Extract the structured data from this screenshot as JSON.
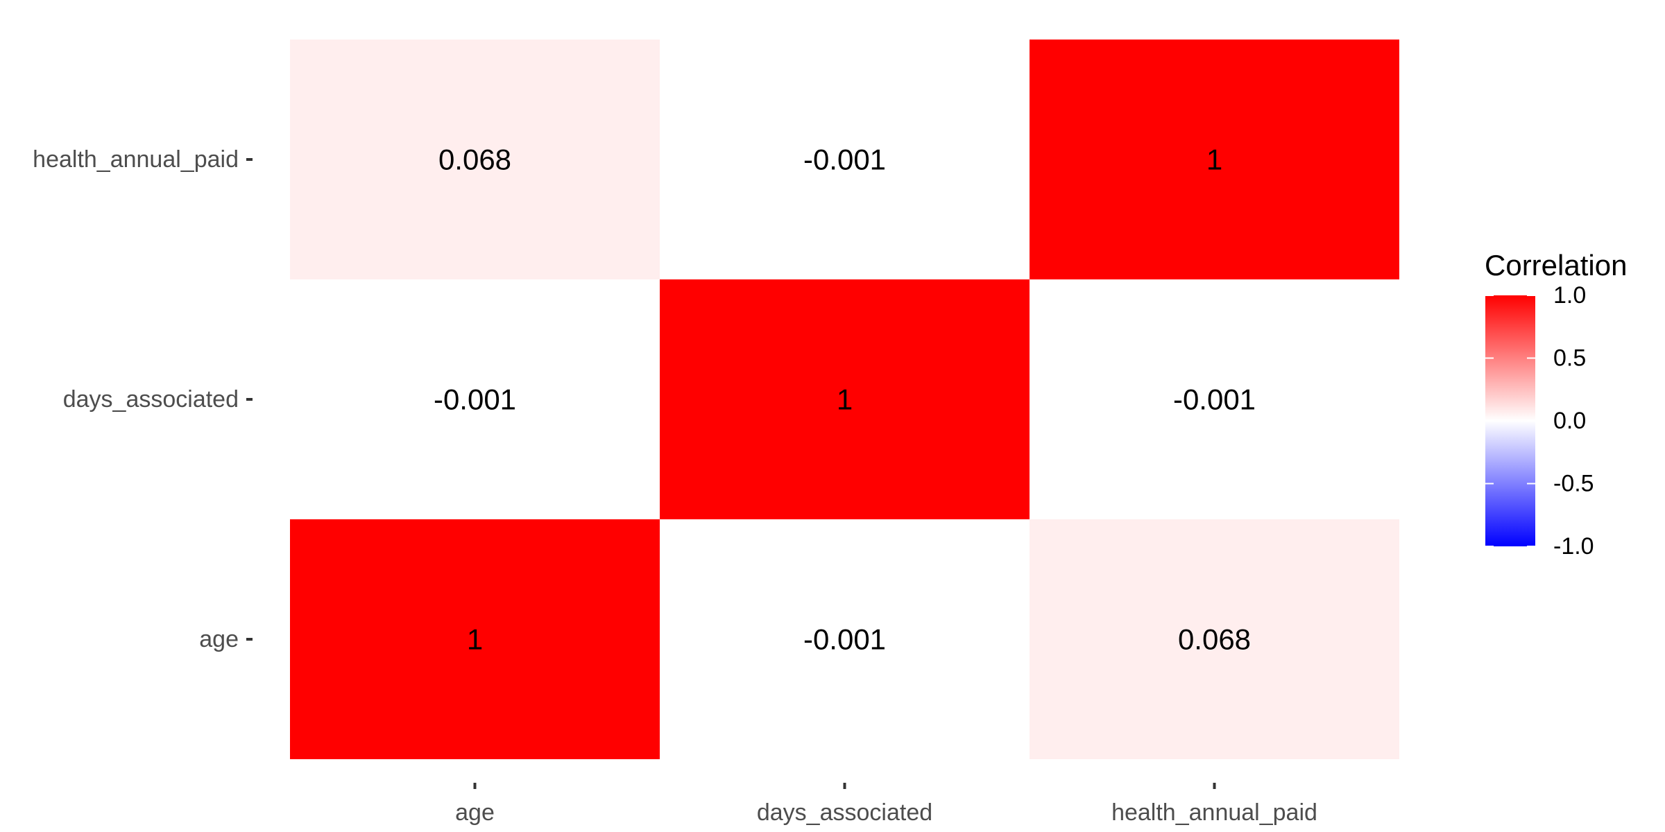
{
  "chart_data": {
    "type": "heatmap",
    "title": "",
    "xlabel": "",
    "ylabel": "",
    "x_categories": [
      "age",
      "days_associated",
      "health_annual_paid"
    ],
    "y_categories": [
      "age",
      "days_associated",
      "health_annual_paid"
    ],
    "y_order": "bottom-to-top",
    "cells": [
      {
        "x": "age",
        "y": "age",
        "value": 1,
        "label": "1"
      },
      {
        "x": "days_associated",
        "y": "age",
        "value": -0.001,
        "label": "-0.001"
      },
      {
        "x": "health_annual_paid",
        "y": "age",
        "value": 0.068,
        "label": "0.068"
      },
      {
        "x": "age",
        "y": "days_associated",
        "value": -0.001,
        "label": "-0.001"
      },
      {
        "x": "days_associated",
        "y": "days_associated",
        "value": 1,
        "label": "1"
      },
      {
        "x": "health_annual_paid",
        "y": "days_associated",
        "value": -0.001,
        "label": "-0.001"
      },
      {
        "x": "age",
        "y": "health_annual_paid",
        "value": 0.068,
        "label": "0.068"
      },
      {
        "x": "days_associated",
        "y": "health_annual_paid",
        "value": -0.001,
        "label": "-0.001"
      },
      {
        "x": "health_annual_paid",
        "y": "health_annual_paid",
        "value": 1,
        "label": "1"
      }
    ],
    "color_scale": {
      "low": "#0000FF",
      "mid": "#FFFFFF",
      "high": "#FF0000",
      "limits": [
        -1,
        1
      ],
      "midpoint": 0
    },
    "legend": {
      "title": "Correlation",
      "placement": "right",
      "ticks": [
        1.0,
        0.5,
        0.0,
        -0.5,
        -1.0
      ],
      "tick_labels": [
        "1.0",
        "0.5",
        "0.0",
        "-0.5",
        "-1.0"
      ]
    },
    "grid": false
  }
}
